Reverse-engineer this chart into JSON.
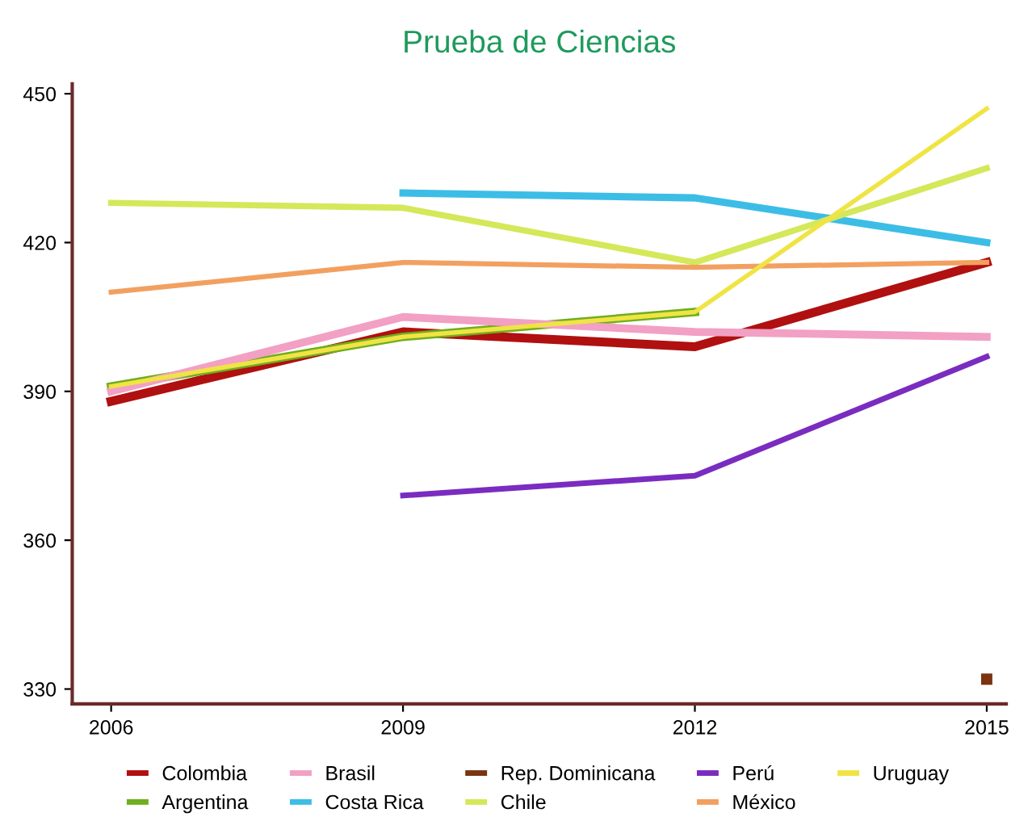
{
  "chart_data": {
    "type": "line",
    "title": "Prueba de Ciencias",
    "x": [
      2006,
      2009,
      2012,
      2015
    ],
    "xlim": [
      2005.6,
      2015.2
    ],
    "xticks": [
      2006,
      2009,
      2012,
      2015
    ],
    "ylim": [
      327,
      452
    ],
    "yticks": [
      330,
      360,
      390,
      420,
      450
    ],
    "grid": false,
    "legend": "bottom",
    "marker": "none",
    "line_style": "solid",
    "series": [
      {
        "name": "Colombia",
        "color": "#b01010",
        "values": [
          388,
          402,
          399,
          416
        ]
      },
      {
        "name": "Argentina",
        "color": "#6fae1f",
        "values": [
          391,
          401,
          406,
          null
        ]
      },
      {
        "name": "Brasil",
        "color": "#f2a0c4",
        "values": [
          390,
          405,
          402,
          401
        ]
      },
      {
        "name": "Costa Rica",
        "color": "#3cbde6",
        "values": [
          null,
          430,
          429,
          420
        ]
      },
      {
        "name": "Rep. Dominicana",
        "color": "#7a3410",
        "marker": "square",
        "values": [
          null,
          null,
          null,
          332
        ]
      },
      {
        "name": "Chile",
        "color": "#d4e85a",
        "values": [
          428,
          427,
          416,
          435
        ]
      },
      {
        "name": "Perú",
        "color": "#7a2cc0",
        "values": [
          null,
          369,
          373,
          397
        ]
      },
      {
        "name": "México",
        "color": "#f2a060",
        "values": [
          410,
          416,
          415,
          416
        ]
      },
      {
        "name": "Uruguay",
        "color": "#f0e444",
        "values": [
          391,
          401,
          406,
          447
        ]
      }
    ]
  }
}
